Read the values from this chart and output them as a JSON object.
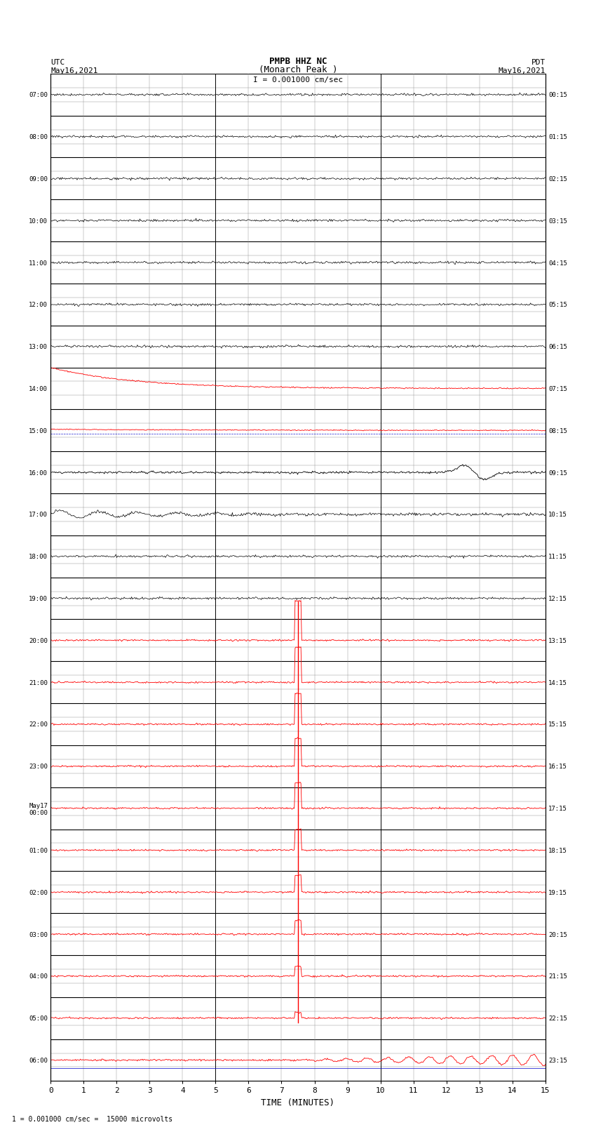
{
  "title_line1": "PMPB HHZ NC",
  "title_line2": "(Monarch Peak )",
  "scale_label": "I = 0.001000 cm/sec",
  "utc_left1": "UTC",
  "utc_left2": "May16,2021",
  "pdt_right1": "PDT",
  "pdt_right2": "May16,2021",
  "xlabel": "TIME (MINUTES)",
  "footer_label": "1 = 0.001000 cm/sec =  15000 microvolts",
  "utc_labels": [
    "07:00",
    "08:00",
    "09:00",
    "10:00",
    "11:00",
    "12:00",
    "13:00",
    "14:00",
    "15:00",
    "16:00",
    "17:00",
    "18:00",
    "19:00",
    "20:00",
    "21:00",
    "22:00",
    "23:00",
    "May17\n00:00",
    "01:00",
    "02:00",
    "03:00",
    "04:00",
    "05:00",
    "06:00"
  ],
  "pdt_labels": [
    "00:15",
    "01:15",
    "02:15",
    "03:15",
    "04:15",
    "05:15",
    "06:15",
    "07:15",
    "08:15",
    "09:15",
    "10:15",
    "11:15",
    "12:15",
    "13:15",
    "14:15",
    "15:15",
    "16:15",
    "17:15",
    "18:15",
    "19:15",
    "20:15",
    "21:15",
    "22:15",
    "23:15"
  ],
  "n_rows": 24,
  "subrows": 3,
  "minutes_per_row": 15,
  "bg_color": "#ffffff",
  "major_grid_color": "#000000",
  "minor_grid_color": "#888888",
  "trace_color_normal": "#000000",
  "trace_color_red": "#ff0000",
  "trace_color_blue": "#0000cc"
}
